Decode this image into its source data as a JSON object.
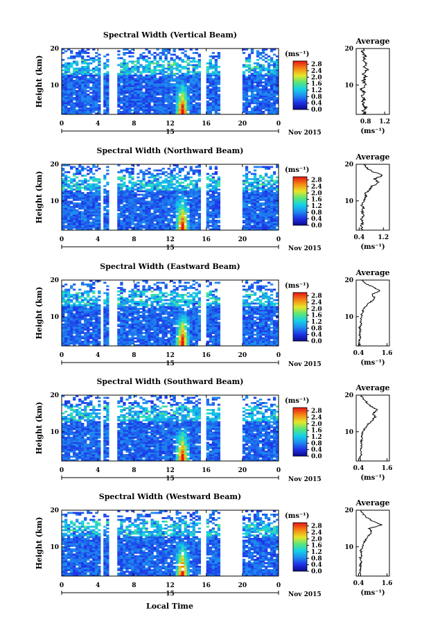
{
  "footer": {
    "xlabel": "Local Time"
  },
  "chart_data": [
    {
      "type": "heatmap",
      "title": "Spectral Width (Vertical Beam)",
      "ylabel": "Height (km)",
      "xticks": [
        "0",
        "4",
        "8",
        "12",
        "16",
        "20",
        "0"
      ],
      "yticks": [
        "10",
        "20"
      ],
      "xlim": [
        0,
        24
      ],
      "ylim": [
        2,
        20
      ],
      "date_day": "15",
      "date_label": "Nov 2015",
      "colorbar": {
        "unit": "(ms⁻¹)",
        "ticks": [
          "0.0",
          "0.4",
          "0.8",
          "1.2",
          "1.6",
          "2.0",
          "2.4",
          "2.8"
        ],
        "range": [
          0,
          3.0
        ]
      },
      "data_gaps": [
        [
          4.2,
          4.6
        ],
        [
          5.1,
          6.0
        ],
        [
          15.4,
          16.0
        ],
        [
          17.4,
          20.0
        ]
      ],
      "features": [
        {
          "type": "enhanced width column",
          "x": [
            12.5,
            14.2
          ],
          "y": [
            2,
            12
          ],
          "max_value": 2.8
        }
      ],
      "profile": {
        "title": "Average",
        "xticks": [
          "0.8",
          "1.2"
        ],
        "xlim": [
          0.6,
          1.3
        ],
        "xlabel": "(ms⁻¹)",
        "yticks": [
          "10",
          "20"
        ],
        "ylim": [
          2,
          20
        ],
        "points": [
          [
            0.78,
            2
          ],
          [
            0.75,
            3
          ],
          [
            0.8,
            4
          ],
          [
            0.74,
            5
          ],
          [
            0.77,
            6
          ],
          [
            0.73,
            7
          ],
          [
            0.76,
            8
          ],
          [
            0.72,
            9
          ],
          [
            0.78,
            10
          ],
          [
            0.75,
            11
          ],
          [
            0.8,
            12
          ],
          [
            0.76,
            13
          ],
          [
            0.83,
            14
          ],
          [
            0.78,
            15
          ],
          [
            0.82,
            16
          ],
          [
            0.76,
            17
          ],
          [
            0.79,
            18
          ],
          [
            0.74,
            19
          ],
          [
            0.77,
            20
          ]
        ]
      }
    },
    {
      "type": "heatmap",
      "title": "Spectral Width (Northward Beam)",
      "ylabel": "Height (km)",
      "xticks": [
        "0",
        "4",
        "8",
        "12",
        "16",
        "20",
        "0"
      ],
      "yticks": [
        "10",
        "20"
      ],
      "xlim": [
        0,
        24
      ],
      "ylim": [
        2,
        20
      ],
      "date_day": "15",
      "date_label": "Nov 2015",
      "colorbar": {
        "unit": "(ms⁻¹)",
        "ticks": [
          "0.0",
          "0.4",
          "0.8",
          "1.2",
          "1.6",
          "2.0",
          "2.4",
          "2.8"
        ],
        "range": [
          0,
          3.0
        ]
      },
      "data_gaps": [
        [
          4.2,
          4.6
        ],
        [
          5.1,
          6.0
        ],
        [
          15.4,
          16.0
        ],
        [
          17.4,
          20.0
        ]
      ],
      "features": [
        {
          "type": "enhanced width column",
          "x": [
            12.5,
            14.2
          ],
          "y": [
            2,
            12
          ],
          "max_value": 2.8
        }
      ],
      "profile": {
        "title": "Average",
        "xticks": [
          "0.4",
          "1.2"
        ],
        "xlim": [
          0.3,
          1.4
        ],
        "xlabel": "(ms⁻¹)",
        "yticks": [
          "10",
          "20"
        ],
        "ylim": [
          2,
          20
        ],
        "points": [
          [
            0.5,
            2
          ],
          [
            0.46,
            3
          ],
          [
            0.52,
            4
          ],
          [
            0.48,
            5
          ],
          [
            0.55,
            6
          ],
          [
            0.5,
            7
          ],
          [
            0.53,
            8
          ],
          [
            0.49,
            9
          ],
          [
            0.57,
            10
          ],
          [
            0.62,
            11
          ],
          [
            0.6,
            12
          ],
          [
            0.75,
            13
          ],
          [
            0.82,
            14
          ],
          [
            1.05,
            15
          ],
          [
            0.9,
            16
          ],
          [
            1.2,
            17
          ],
          [
            0.85,
            18
          ],
          [
            0.65,
            19
          ],
          [
            0.55,
            20
          ]
        ]
      }
    },
    {
      "type": "heatmap",
      "title": "Spectral Width (Eastward Beam)",
      "ylabel": "Height (km)",
      "xticks": [
        "0",
        "4",
        "8",
        "12",
        "16",
        "20",
        "0"
      ],
      "yticks": [
        "10",
        "20"
      ],
      "xlim": [
        0,
        24
      ],
      "ylim": [
        2,
        20
      ],
      "date_day": "15",
      "date_label": "Nov 2015",
      "colorbar": {
        "unit": "(ms⁻¹)",
        "ticks": [
          "0.0",
          "0.4",
          "0.8",
          "1.2",
          "1.6",
          "2.0",
          "2.4",
          "2.8"
        ],
        "range": [
          0,
          3.0
        ]
      },
      "data_gaps": [
        [
          4.2,
          4.6
        ],
        [
          5.1,
          6.0
        ],
        [
          15.4,
          16.0
        ],
        [
          17.4,
          20.0
        ]
      ],
      "features": [
        {
          "type": "enhanced width column",
          "x": [
            12.5,
            14.2
          ],
          "y": [
            2,
            12
          ],
          "max_value": 2.8
        }
      ],
      "profile": {
        "title": "Average",
        "xticks": [
          "0.4",
          "1.6"
        ],
        "xlim": [
          0.3,
          1.7
        ],
        "xlabel": "(ms⁻¹)",
        "yticks": [
          "10",
          "20"
        ],
        "ylim": [
          2,
          20
        ],
        "points": [
          [
            0.45,
            2
          ],
          [
            0.42,
            3
          ],
          [
            0.47,
            4
          ],
          [
            0.44,
            5
          ],
          [
            0.48,
            6
          ],
          [
            0.45,
            7
          ],
          [
            0.5,
            8
          ],
          [
            0.47,
            9
          ],
          [
            0.52,
            10
          ],
          [
            0.55,
            11
          ],
          [
            0.6,
            12
          ],
          [
            0.72,
            13
          ],
          [
            0.9,
            14
          ],
          [
            1.1,
            15
          ],
          [
            0.95,
            16
          ],
          [
            1.3,
            17
          ],
          [
            1.05,
            18
          ],
          [
            0.7,
            19
          ],
          [
            0.55,
            20
          ]
        ]
      }
    },
    {
      "type": "heatmap",
      "title": "Spectral Width (Southward Beam)",
      "ylabel": "Height (km)",
      "xticks": [
        "0",
        "4",
        "8",
        "12",
        "16",
        "20",
        "0"
      ],
      "yticks": [
        "10",
        "20"
      ],
      "xlim": [
        0,
        24
      ],
      "ylim": [
        2,
        20
      ],
      "date_day": "15",
      "date_label": "Nov 2015",
      "colorbar": {
        "unit": "(ms⁻¹)",
        "ticks": [
          "0.0",
          "0.4",
          "0.8",
          "1.2",
          "1.6",
          "2.0",
          "2.4",
          "2.8"
        ],
        "range": [
          0,
          3.0
        ]
      },
      "data_gaps": [
        [
          4.2,
          4.6
        ],
        [
          5.1,
          6.0
        ],
        [
          15.4,
          16.0
        ],
        [
          17.4,
          20.0
        ]
      ],
      "features": [
        {
          "type": "enhanced width column",
          "x": [
            12.5,
            14.2
          ],
          "y": [
            2,
            12
          ],
          "max_value": 2.8
        }
      ],
      "profile": {
        "title": "Average",
        "xticks": [
          "0.4",
          "1.6"
        ],
        "xlim": [
          0.3,
          1.7
        ],
        "xlabel": "(ms⁻¹)",
        "yticks": [
          "10",
          "20"
        ],
        "ylim": [
          2,
          20
        ],
        "points": [
          [
            0.5,
            2
          ],
          [
            0.47,
            3
          ],
          [
            0.52,
            4
          ],
          [
            0.49,
            5
          ],
          [
            0.53,
            6
          ],
          [
            0.5,
            7
          ],
          [
            0.55,
            8
          ],
          [
            0.52,
            9
          ],
          [
            0.6,
            10
          ],
          [
            0.68,
            11
          ],
          [
            0.8,
            12
          ],
          [
            0.95,
            13
          ],
          [
            1.1,
            14
          ],
          [
            1.0,
            15
          ],
          [
            1.2,
            16
          ],
          [
            0.9,
            17
          ],
          [
            0.75,
            18
          ],
          [
            0.6,
            19
          ],
          [
            0.5,
            20
          ]
        ]
      }
    },
    {
      "type": "heatmap",
      "title": "Spectral Width (Westward Beam)",
      "ylabel": "Height (km)",
      "xticks": [
        "0",
        "4",
        "8",
        "12",
        "16",
        "20",
        "0"
      ],
      "yticks": [
        "10",
        "20"
      ],
      "xlim": [
        0,
        24
      ],
      "ylim": [
        2,
        20
      ],
      "date_day": "15",
      "date_label": "Nov 2015",
      "colorbar": {
        "unit": "(ms⁻¹)",
        "ticks": [
          "0.0",
          "0.4",
          "0.8",
          "1.2",
          "1.6",
          "2.0",
          "2.4",
          "2.8"
        ],
        "range": [
          0,
          3.0
        ]
      },
      "data_gaps": [
        [
          4.2,
          4.6
        ],
        [
          5.1,
          6.0
        ],
        [
          15.4,
          16.0
        ],
        [
          17.4,
          20.0
        ]
      ],
      "features": [
        {
          "type": "enhanced width column",
          "x": [
            12.5,
            14.2
          ],
          "y": [
            2,
            12
          ],
          "max_value": 2.8
        }
      ],
      "profile": {
        "title": "Average",
        "xticks": [
          "0.4",
          "1.6"
        ],
        "xlim": [
          0.3,
          1.7
        ],
        "xlabel": "(ms⁻¹)",
        "yticks": [
          "10",
          "20"
        ],
        "ylim": [
          2,
          20
        ],
        "points": [
          [
            0.48,
            2
          ],
          [
            0.45,
            3
          ],
          [
            0.5,
            4
          ],
          [
            0.47,
            5
          ],
          [
            0.51,
            6
          ],
          [
            0.48,
            7
          ],
          [
            0.53,
            8
          ],
          [
            0.5,
            9
          ],
          [
            0.56,
            10
          ],
          [
            0.62,
            11
          ],
          [
            0.7,
            12
          ],
          [
            0.82,
            13
          ],
          [
            0.95,
            14
          ],
          [
            0.85,
            15
          ],
          [
            1.4,
            16
          ],
          [
            1.0,
            17
          ],
          [
            0.75,
            18
          ],
          [
            0.58,
            19
          ],
          [
            0.5,
            20
          ]
        ]
      }
    }
  ]
}
